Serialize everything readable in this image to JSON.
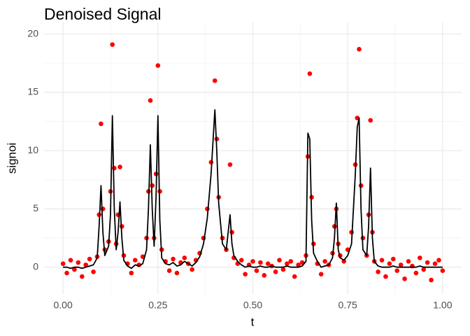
{
  "chart_data": {
    "type": "scatter",
    "title": "Denoised Signal",
    "x_label": "t",
    "y_label": "signoi",
    "x": [
      0.0,
      0.01,
      0.02,
      0.03,
      0.04,
      0.05,
      0.06,
      0.07,
      0.08,
      0.09,
      0.095,
      0.1,
      0.105,
      0.11,
      0.12,
      0.125,
      0.13,
      0.135,
      0.14,
      0.145,
      0.15,
      0.155,
      0.16,
      0.17,
      0.18,
      0.19,
      0.2,
      0.21,
      0.22,
      0.225,
      0.23,
      0.235,
      0.24,
      0.245,
      0.25,
      0.255,
      0.26,
      0.27,
      0.28,
      0.29,
      0.3,
      0.31,
      0.32,
      0.33,
      0.34,
      0.35,
      0.36,
      0.37,
      0.38,
      0.39,
      0.4,
      0.405,
      0.41,
      0.42,
      0.43,
      0.44,
      0.445,
      0.45,
      0.46,
      0.47,
      0.48,
      0.49,
      0.5,
      0.51,
      0.52,
      0.53,
      0.54,
      0.55,
      0.56,
      0.57,
      0.58,
      0.59,
      0.6,
      0.61,
      0.62,
      0.63,
      0.64,
      0.645,
      0.65,
      0.655,
      0.66,
      0.67,
      0.68,
      0.69,
      0.7,
      0.71,
      0.715,
      0.72,
      0.725,
      0.73,
      0.74,
      0.75,
      0.76,
      0.77,
      0.775,
      0.78,
      0.785,
      0.79,
      0.8,
      0.805,
      0.81,
      0.815,
      0.82,
      0.83,
      0.84,
      0.85,
      0.86,
      0.87,
      0.88,
      0.89,
      0.9,
      0.91,
      0.92,
      0.93,
      0.94,
      0.95,
      0.96,
      0.97,
      0.98,
      0.99,
      1.0
    ],
    "points": {
      "color": "#ff0000",
      "values": [
        0.3,
        -0.5,
        0.6,
        -0.2,
        0.4,
        -0.8,
        0.2,
        0.7,
        -0.4,
        0.9,
        4.5,
        12.3,
        5.0,
        1.5,
        2.2,
        6.5,
        19.1,
        8.5,
        2.0,
        4.5,
        8.6,
        3.5,
        1.0,
        0.3,
        -0.5,
        0.6,
        0.2,
        0.9,
        2.5,
        6.5,
        14.3,
        7.0,
        2.5,
        8.0,
        17.3,
        6.5,
        1.5,
        0.5,
        -0.3,
        0.7,
        -0.5,
        0.4,
        0.8,
        0.3,
        -0.2,
        0.6,
        1.2,
        2.5,
        5.0,
        9.0,
        16.0,
        11.0,
        6.0,
        2.5,
        1.5,
        8.8,
        3.0,
        0.8,
        0.3,
        0.6,
        -0.6,
        0.2,
        0.5,
        -0.3,
        0.4,
        -0.7,
        0.3,
        0.1,
        -0.4,
        0.6,
        -0.2,
        0.3,
        0.5,
        -0.8,
        0.2,
        0.4,
        1.0,
        9.5,
        16.6,
        6.0,
        2.0,
        0.3,
        -0.6,
        0.5,
        0.2,
        1.2,
        3.5,
        5.0,
        2.0,
        1.0,
        0.5,
        1.5,
        3.0,
        8.8,
        12.8,
        18.7,
        7.0,
        2.5,
        1.0,
        4.5,
        12.6,
        3.0,
        0.5,
        -0.4,
        0.6,
        -0.8,
        0.3,
        0.7,
        -0.3,
        0.2,
        -1.0,
        0.5,
        0.1,
        -0.5,
        0.8,
        -0.2,
        0.4,
        -1.1,
        0.3,
        0.6,
        -0.3
      ]
    },
    "line": {
      "color": "#000000",
      "values": [
        0,
        0,
        -0.1,
        0,
        0,
        -0.1,
        0,
        0.1,
        0.2,
        0.8,
        3.5,
        7.0,
        3.0,
        1.0,
        1.8,
        4.5,
        13.0,
        5.0,
        1.5,
        3.0,
        5.6,
        2.5,
        0.6,
        0.1,
        -0.1,
        0.2,
        0.1,
        0.3,
        1.5,
        5.0,
        10.5,
        5.0,
        1.8,
        6.0,
        13.0,
        4.0,
        0.8,
        0.3,
        0.2,
        0.4,
        0.1,
        0.2,
        0.5,
        0.3,
        0.1,
        0.4,
        0.9,
        2.0,
        4.2,
        8.0,
        13.5,
        10.0,
        5.5,
        2.0,
        1.5,
        4.5,
        2.0,
        1.0,
        0.5,
        0.2,
        0,
        0.1,
        0,
        0,
        0.1,
        0,
        0,
        0.1,
        0,
        0,
        0,
        0.1,
        0,
        0,
        0,
        0.1,
        0.5,
        11.5,
        11.0,
        4.0,
        1.2,
        0.5,
        0,
        0.1,
        0.2,
        0.8,
        2.5,
        5.5,
        1.5,
        0.8,
        0.6,
        1.0,
        2.0,
        8.0,
        12.0,
        12.8,
        5.0,
        1.5,
        1.0,
        3.5,
        8.5,
        2.5,
        0.5,
        0.1,
        0,
        0,
        0,
        0.1,
        0,
        0,
        0,
        0,
        0,
        0,
        0.1,
        0,
        0,
        0,
        0,
        0,
        0
      ]
    },
    "xlim": [
      -0.05,
      1.05
    ],
    "ylim": [
      -2.3,
      21
    ],
    "xticks": [
      {
        "value": 0,
        "label": "0.00"
      },
      {
        "value": 0.25,
        "label": "0.25"
      },
      {
        "value": 0.5,
        "label": "0.50"
      },
      {
        "value": 0.75,
        "label": "0.75"
      },
      {
        "value": 1,
        "label": "1.00"
      }
    ],
    "yticks": [
      0,
      5,
      10,
      15,
      20
    ],
    "x_minor": [
      0.125,
      0.375,
      0.625,
      0.875
    ],
    "y_minor": [
      2.5,
      7.5,
      12.5,
      17.5
    ],
    "grid": true
  }
}
